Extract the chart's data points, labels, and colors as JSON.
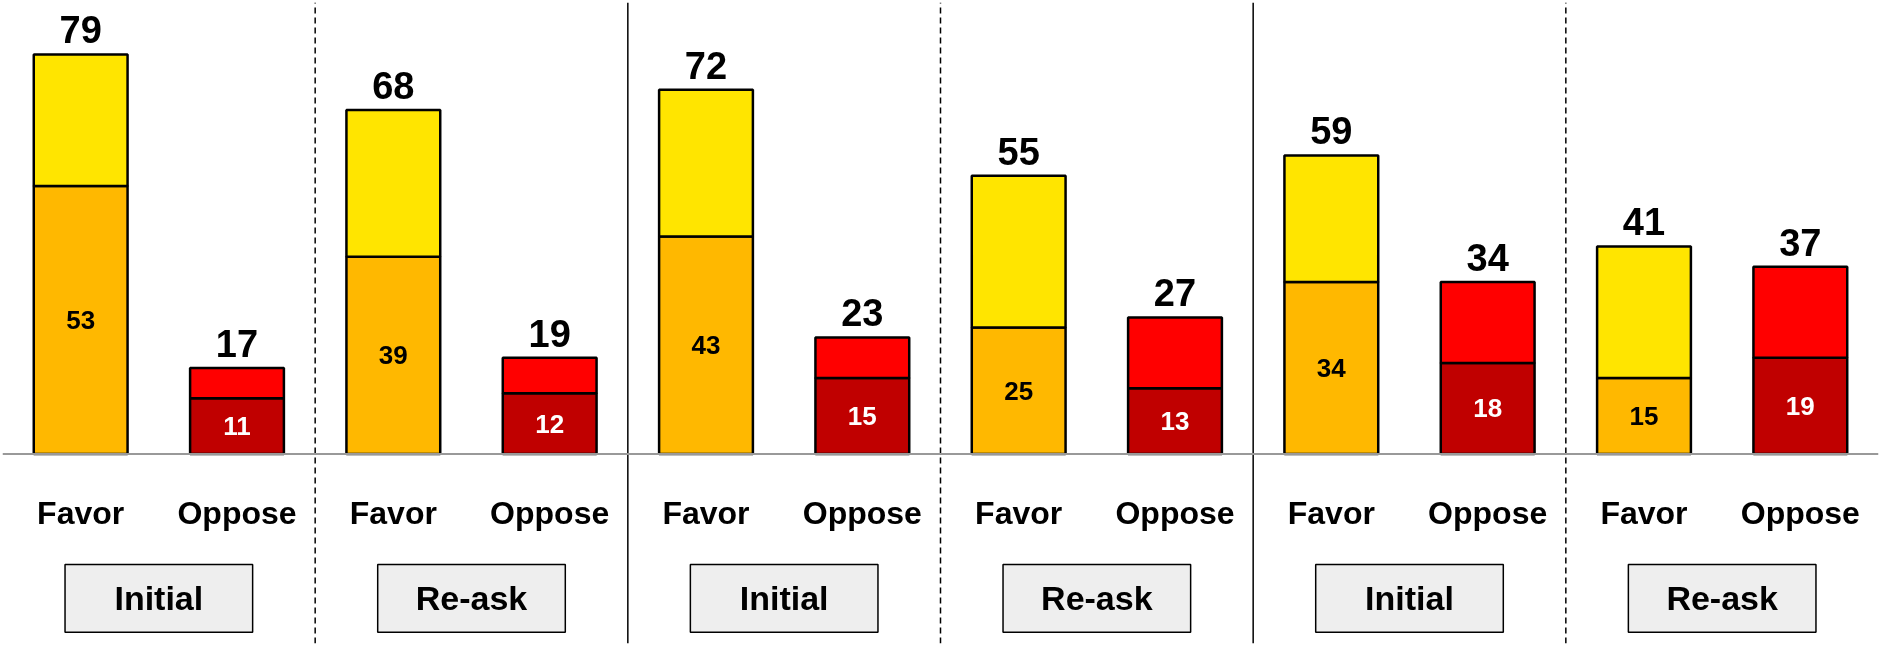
{
  "chart_data": {
    "type": "bar",
    "stacked": true,
    "categories": [
      "Favor",
      "Oppose",
      "Favor",
      "Oppose",
      "Favor",
      "Oppose",
      "Favor",
      "Oppose",
      "Favor",
      "Oppose",
      "Favor",
      "Oppose"
    ],
    "series": [
      {
        "colors": [
          "#ffb800",
          "#c00000",
          "#ffb800",
          "#c00000",
          "#ffb800",
          "#c00000",
          "#ffb800",
          "#c00000",
          "#ffb800",
          "#c00000",
          "#ffb800",
          "#c00000"
        ],
        "values": [
          53,
          11,
          39,
          12,
          43,
          15,
          25,
          13,
          34,
          18,
          15,
          19
        ],
        "value_labels": [
          "53",
          "11",
          "39",
          "12",
          "43",
          "15",
          "25",
          "13",
          "34",
          "18",
          "15",
          "19"
        ]
      },
      {
        "colors": [
          "#ffe500",
          "#ff0000",
          "#ffe500",
          "#ff0000",
          "#ffe500",
          "#ff0000",
          "#ffe500",
          "#ff0000",
          "#ffe500",
          "#ff0000",
          "#ffe500",
          "#ff0000"
        ],
        "values": [
          26,
          6,
          29,
          7,
          29,
          8,
          30,
          14,
          25,
          16,
          26,
          18
        ]
      }
    ],
    "totals": [
      "79",
      "17",
      "68",
      "19",
      "72",
      "23",
      "55",
      "27",
      "59",
      "34",
      "41",
      "37"
    ],
    "annotations": [
      "Initial",
      "Re-ask",
      "Initial",
      "Re-ask",
      "Initial",
      "Re-ask"
    ],
    "grid": false
  }
}
